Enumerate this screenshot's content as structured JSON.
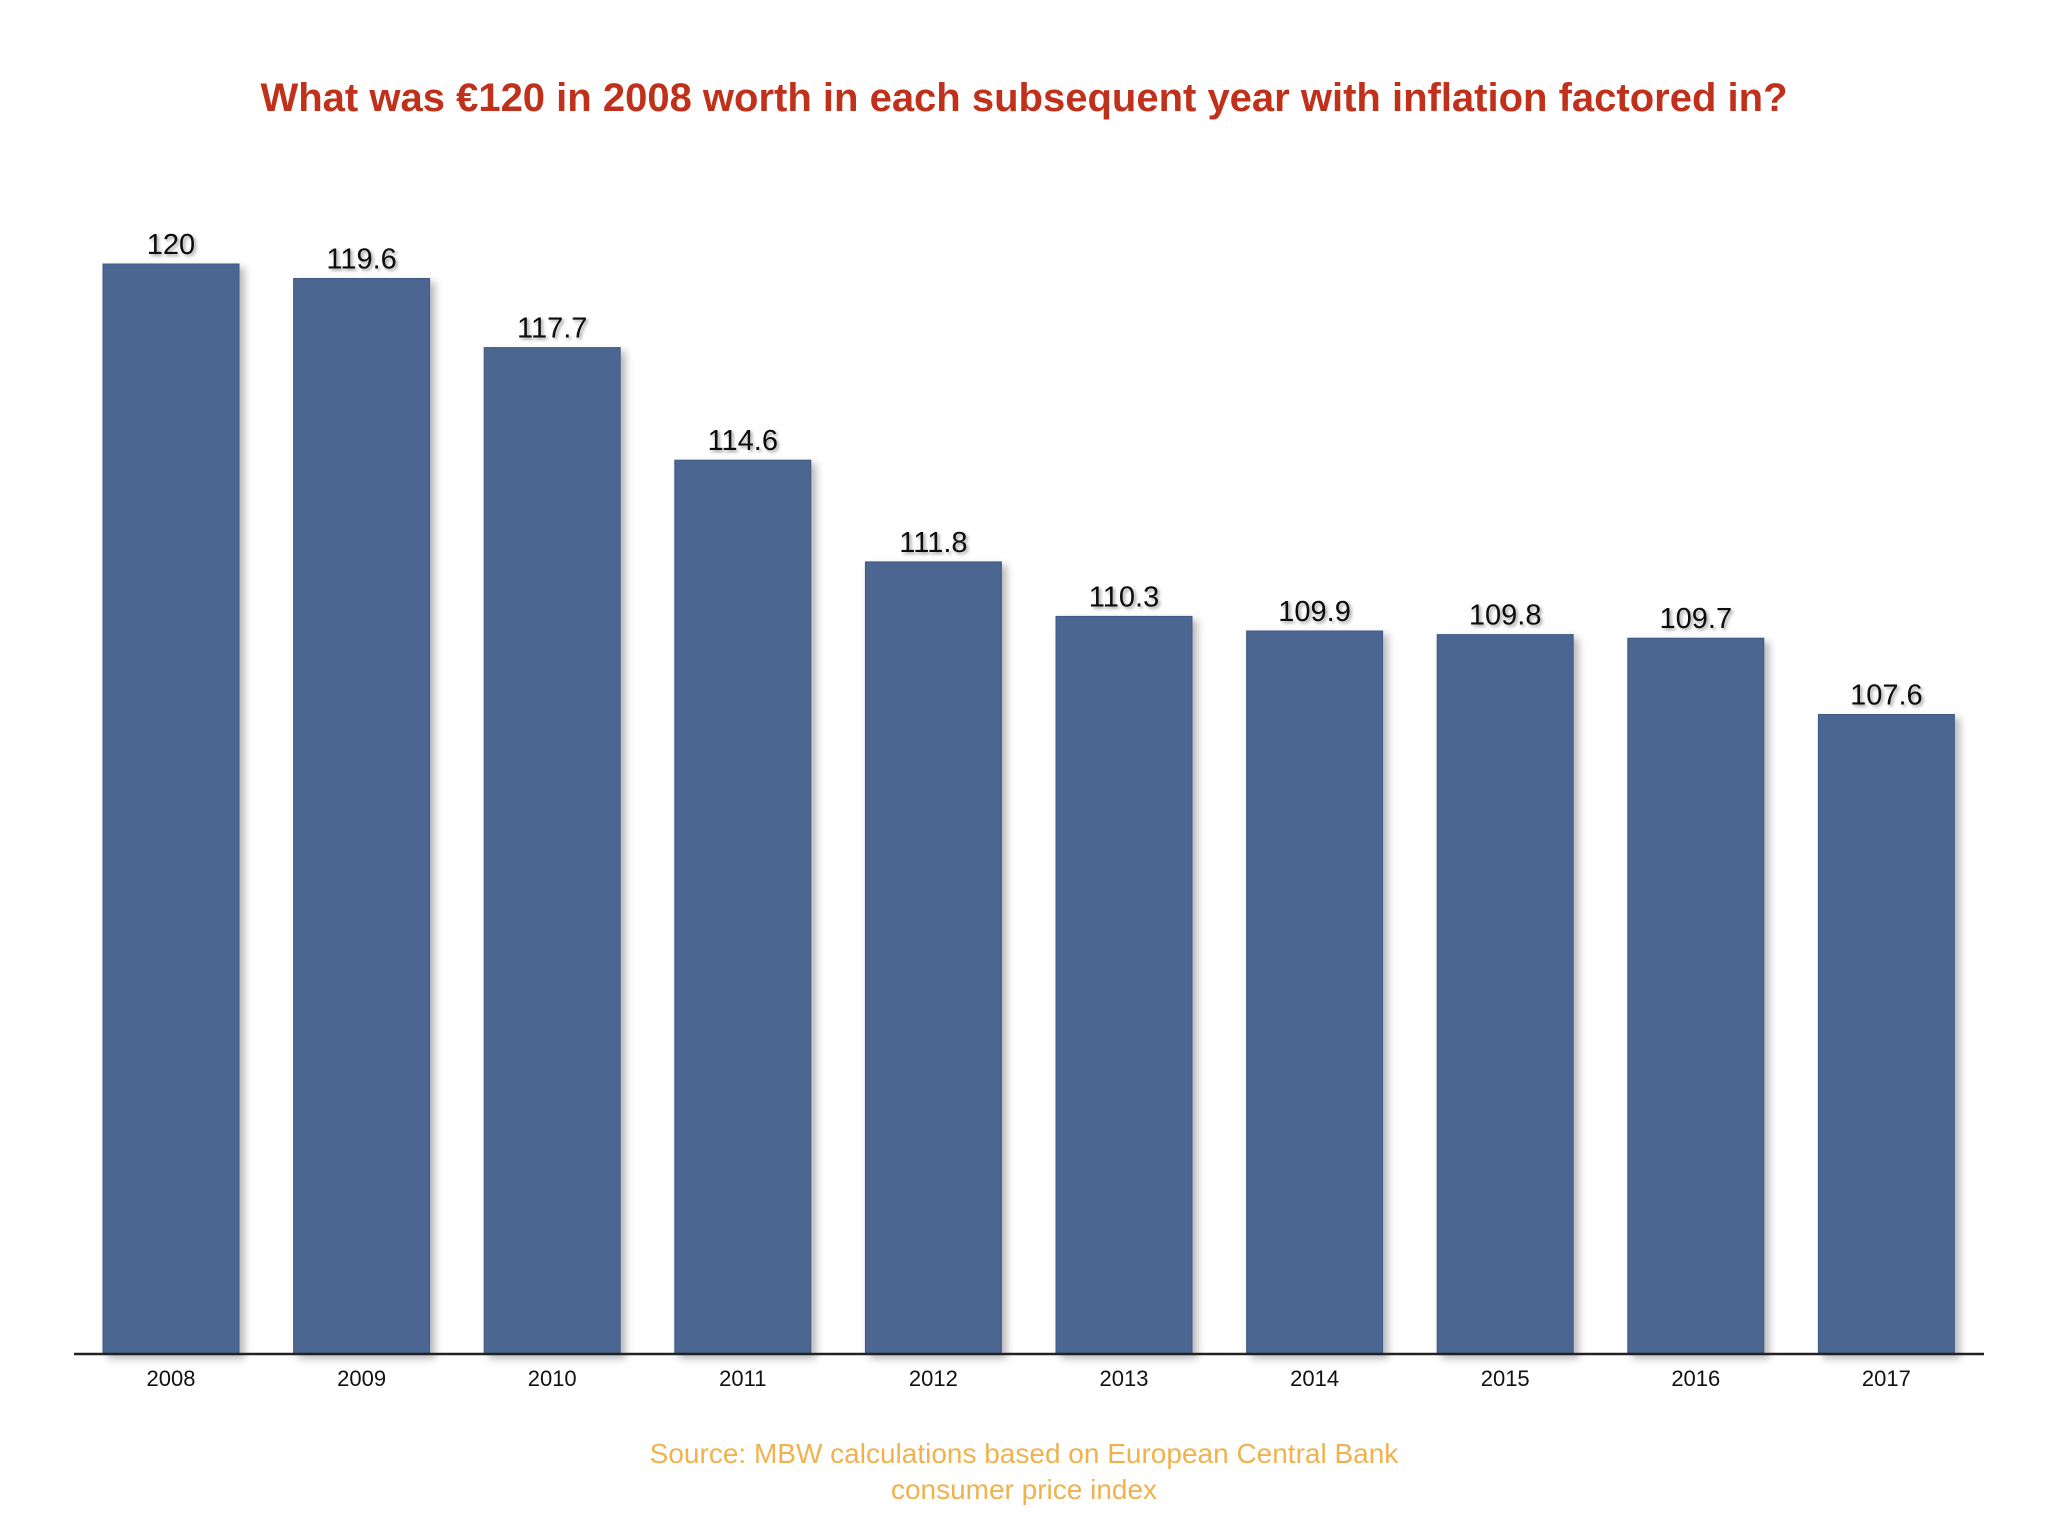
{
  "chart_data": {
    "type": "bar",
    "title": "What was €120 in 2008 worth in each subsequent year with inflation factored in?",
    "categories": [
      "2008",
      "2009",
      "2010",
      "2011",
      "2012",
      "2013",
      "2014",
      "2015",
      "2016",
      "2017"
    ],
    "values": [
      120,
      119.6,
      117.7,
      114.6,
      111.8,
      110.3,
      109.9,
      109.8,
      109.7,
      107.6
    ],
    "data_labels": [
      "120",
      "119.6",
      "117.7",
      "114.6",
      "111.8",
      "110.3",
      "109.9",
      "109.8",
      "109.7",
      "107.6"
    ],
    "xlabel": "",
    "ylabel": "",
    "ylim": [
      90,
      120
    ],
    "grid": false,
    "legend": "none"
  },
  "source": {
    "line1": "Source: MBW calculations based on European Central Bank",
    "line2": "consumer price index"
  },
  "colors": {
    "title": "#c0311c",
    "bar": "#4b6690",
    "bar_dark": "#3f5a82",
    "axis": "#222222",
    "label": "#111111",
    "source": "#f0b24f"
  }
}
